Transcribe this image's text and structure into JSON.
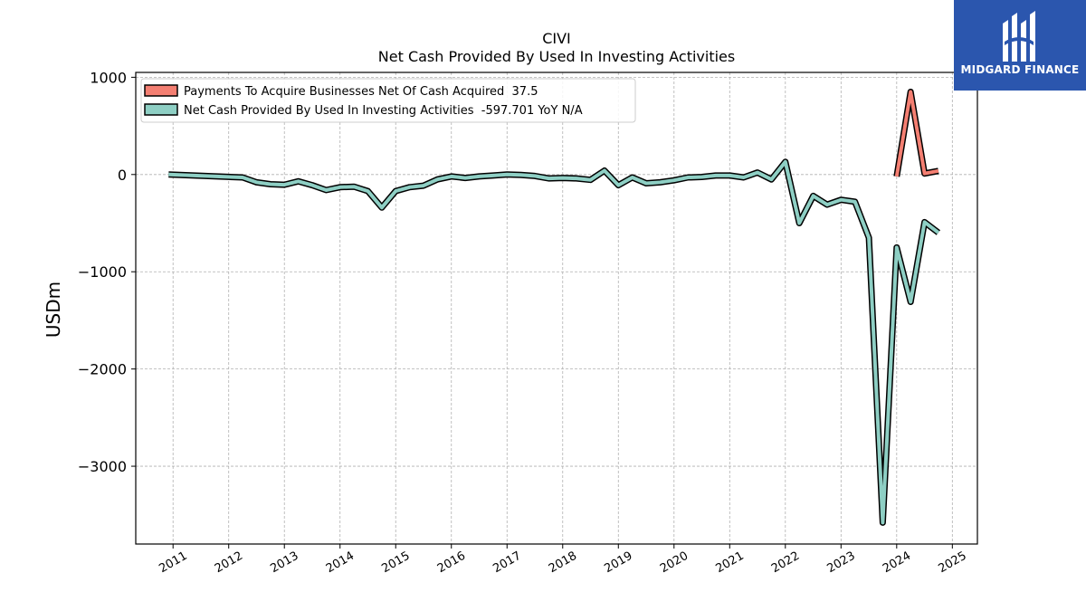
{
  "chart_data": {
    "type": "line",
    "title": "CIVI",
    "subtitle": "Net Cash Provided By Used In Investing Activities",
    "ylabel": "USDm",
    "ylim": [
      -3800,
      1050
    ],
    "yticks": [
      1000,
      0,
      -1000,
      -2000,
      -3000
    ],
    "ytick_labels": [
      "1000",
      "0",
      "−1000",
      "−2000",
      "−3000"
    ],
    "xlim": [
      2010.33,
      2025.45
    ],
    "xticks": [
      2011,
      2012,
      2013,
      2014,
      2015,
      2016,
      2017,
      2018,
      2019,
      2020,
      2021,
      2022,
      2023,
      2024,
      2025
    ],
    "xtick_labels": [
      "2011",
      "2012",
      "2013",
      "2014",
      "2015",
      "2016",
      "2017",
      "2018",
      "2019",
      "2020",
      "2021",
      "2022",
      "2023",
      "2024",
      "2025"
    ],
    "grid": true,
    "legend_position": "top-left",
    "series": [
      {
        "name": "Payments To Acquire Businesses Net Of Cash Acquired  37.5",
        "color": "#f47f72",
        "x": [
          2024.0,
          2024.25,
          2024.5,
          2024.75
        ],
        "y": [
          -20,
          850,
          10,
          37.5
        ]
      },
      {
        "name": "Net Cash Provided By Used In Investing Activities  -597.701 YoY N/A",
        "color": "#8ecfc4",
        "x": [
          2010.92,
          2012.25,
          2012.5,
          2012.75,
          2013.0,
          2013.25,
          2013.5,
          2013.75,
          2014.0,
          2014.25,
          2014.5,
          2014.75,
          2015.0,
          2015.25,
          2015.5,
          2015.75,
          2016.0,
          2016.25,
          2016.5,
          2016.75,
          2017.0,
          2017.25,
          2017.5,
          2017.75,
          2018.0,
          2018.25,
          2018.5,
          2018.75,
          2019.0,
          2019.25,
          2019.5,
          2019.75,
          2020.0,
          2020.25,
          2020.5,
          2020.75,
          2021.0,
          2021.25,
          2021.5,
          2021.75,
          2022.0,
          2022.25,
          2022.5,
          2022.75,
          2023.0,
          2023.25,
          2023.5,
          2023.75,
          2024.0,
          2024.25,
          2024.5,
          2024.75
        ],
        "y": [
          0,
          -30,
          -80,
          -100,
          -105,
          -70,
          -110,
          -160,
          -130,
          -125,
          -170,
          -340,
          -170,
          -130,
          -115,
          -50,
          -20,
          -35,
          -20,
          -10,
          0,
          -5,
          -15,
          -40,
          -35,
          -40,
          -55,
          40,
          -110,
          -30,
          -90,
          -80,
          -60,
          -30,
          -25,
          -10,
          -10,
          -30,
          20,
          -50,
          130,
          -500,
          -220,
          -310,
          -260,
          -280,
          -650,
          -3580,
          -750,
          -1310,
          -490,
          -598
        ]
      }
    ]
  },
  "logo": {
    "text": "MIDGARD FINANCE",
    "icon": "midgard-logo-icon"
  }
}
